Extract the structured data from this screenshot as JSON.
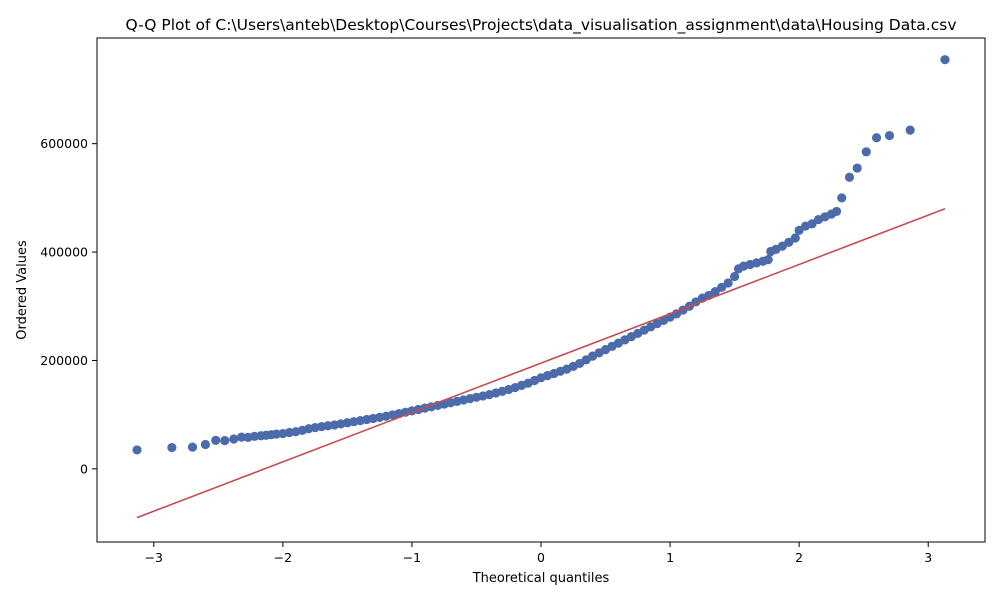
{
  "chart_data": {
    "type": "scatter",
    "title": "Q-Q Plot of C:\\Users\\anteb\\Desktop\\Courses\\Projects\\data_visualisation_assignment\\data\\Housing Data.csv",
    "xlabel": "Theoretical quantiles",
    "ylabel": "Ordered Values",
    "xlim": [
      -3.44,
      3.44
    ],
    "ylim": [
      -135000,
      795000
    ],
    "x_ticks": [
      -3,
      -2,
      -1,
      0,
      1,
      2,
      3
    ],
    "x_tick_labels": [
      "−3",
      "−2",
      "−1",
      "0",
      "1",
      "2",
      "3"
    ],
    "y_ticks": [
      0,
      200000,
      400000,
      600000
    ],
    "y_tick_labels": [
      "0",
      "200000",
      "400000",
      "600000"
    ],
    "grid": false,
    "colors": {
      "points": "#4c6bab",
      "line": "#c44e52"
    },
    "fit_line": {
      "x": [
        -3.13,
        3.13
      ],
      "y": [
        -90000,
        480000
      ]
    },
    "series": [
      {
        "values_kind": "scatter",
        "points": [
          [
            -3.13,
            34900
          ],
          [
            -2.86,
            39300
          ],
          [
            -2.7,
            40000
          ],
          [
            -2.6,
            45000
          ],
          [
            -2.52,
            52500
          ],
          [
            -2.45,
            52000
          ],
          [
            -2.38,
            55000
          ],
          [
            -2.32,
            58500
          ],
          [
            -2.27,
            58000
          ],
          [
            -2.22,
            60000
          ],
          [
            -2.17,
            61000
          ],
          [
            -2.13,
            62000
          ],
          [
            -2.09,
            63000
          ],
          [
            -2.05,
            64000
          ],
          [
            -2.0,
            65000
          ],
          [
            -1.95,
            67000
          ],
          [
            -1.9,
            68500
          ],
          [
            -1.85,
            71000
          ],
          [
            -1.8,
            74000
          ],
          [
            -1.75,
            76000
          ],
          [
            -1.7,
            78000
          ],
          [
            -1.65,
            79500
          ],
          [
            -1.6,
            81000
          ],
          [
            -1.55,
            83000
          ],
          [
            -1.5,
            85000
          ],
          [
            -1.45,
            87000
          ],
          [
            -1.4,
            89000
          ],
          [
            -1.35,
            91000
          ],
          [
            -1.3,
            93000
          ],
          [
            -1.25,
            95000
          ],
          [
            -1.2,
            97000
          ],
          [
            -1.15,
            99500
          ],
          [
            -1.1,
            102000
          ],
          [
            -1.05,
            104500
          ],
          [
            -1.0,
            107000
          ],
          [
            -0.95,
            109500
          ],
          [
            -0.9,
            112000
          ],
          [
            -0.85,
            114500
          ],
          [
            -0.8,
            117000
          ],
          [
            -0.75,
            119500
          ],
          [
            -0.7,
            122000
          ],
          [
            -0.65,
            124500
          ],
          [
            -0.6,
            127000
          ],
          [
            -0.55,
            129500
          ],
          [
            -0.5,
            132000
          ],
          [
            -0.45,
            134500
          ],
          [
            -0.4,
            137000
          ],
          [
            -0.35,
            140000
          ],
          [
            -0.3,
            143000
          ],
          [
            -0.25,
            146500
          ],
          [
            -0.2,
            150000
          ],
          [
            -0.15,
            154000
          ],
          [
            -0.1,
            158000
          ],
          [
            -0.05,
            163000
          ],
          [
            0.0,
            168000
          ],
          [
            0.05,
            172000
          ],
          [
            0.1,
            176000
          ],
          [
            0.15,
            180000
          ],
          [
            0.2,
            184000
          ],
          [
            0.25,
            189000
          ],
          [
            0.3,
            194500
          ],
          [
            0.35,
            201000
          ],
          [
            0.4,
            208000
          ],
          [
            0.45,
            214000
          ],
          [
            0.5,
            220000
          ],
          [
            0.55,
            226000
          ],
          [
            0.6,
            232000
          ],
          [
            0.65,
            238000
          ],
          [
            0.7,
            244000
          ],
          [
            0.75,
            250000
          ],
          [
            0.8,
            256000
          ],
          [
            0.85,
            262000
          ],
          [
            0.9,
            268000
          ],
          [
            0.95,
            274000
          ],
          [
            1.0,
            280000
          ],
          [
            1.05,
            286000
          ],
          [
            1.1,
            293000
          ],
          [
            1.15,
            300000
          ],
          [
            1.2,
            308000
          ],
          [
            1.25,
            315000
          ],
          [
            1.3,
            320000
          ],
          [
            1.35,
            327000
          ],
          [
            1.4,
            335000
          ],
          [
            1.45,
            343000
          ],
          [
            1.5,
            355000
          ],
          [
            1.53,
            369000
          ],
          [
            1.57,
            374000
          ],
          [
            1.62,
            377000
          ],
          [
            1.67,
            380000
          ],
          [
            1.72,
            383000
          ],
          [
            1.76,
            386000
          ],
          [
            1.78,
            401000
          ],
          [
            1.82,
            405000
          ],
          [
            1.87,
            411000
          ],
          [
            1.92,
            418000
          ],
          [
            1.97,
            426000
          ],
          [
            2.0,
            440000
          ],
          [
            2.05,
            448000
          ],
          [
            2.1,
            452000
          ],
          [
            2.15,
            460000
          ],
          [
            2.2,
            465000
          ],
          [
            2.25,
            470000
          ],
          [
            2.29,
            475000
          ],
          [
            2.33,
            500000
          ],
          [
            2.39,
            538000
          ],
          [
            2.45,
            555000
          ],
          [
            2.52,
            585000
          ],
          [
            2.6,
            611000
          ],
          [
            2.7,
            615000
          ],
          [
            2.86,
            625000
          ],
          [
            3.13,
            755000
          ]
        ]
      }
    ]
  }
}
